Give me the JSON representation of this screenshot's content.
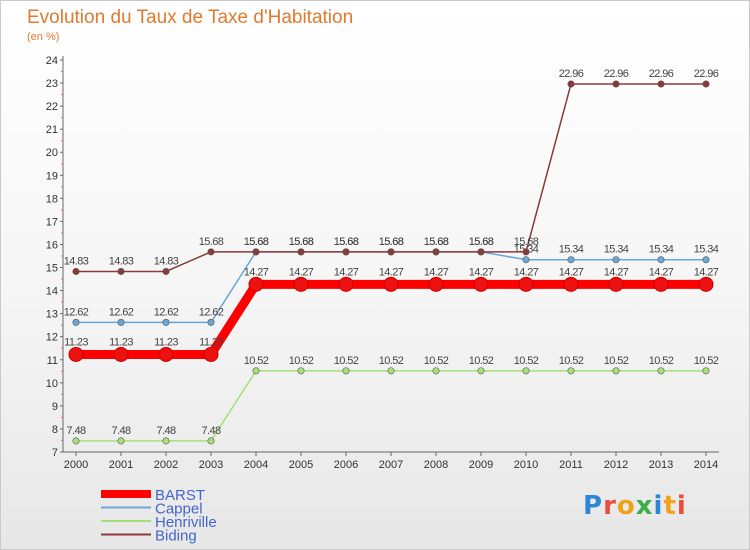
{
  "page": {
    "title": "Evolution du Taux de Taxe d'Habitation",
    "subtitle": "(en %)"
  },
  "logo": {
    "text": "Proxiti",
    "letter_colors": [
      "#2e86d6",
      "#e94e3d",
      "#f0a21b",
      "#3cae4b",
      "#2e86d6",
      "#f0a21b",
      "#e94e3d"
    ]
  },
  "chart_data": {
    "type": "line",
    "title": "Evolution du Taux de Taxe d'Habitation",
    "ylabel": "(en %)",
    "xlabel": "",
    "ylim": [
      7,
      24
    ],
    "yticks": [
      7,
      8,
      9,
      10,
      11,
      12,
      13,
      14,
      15,
      16,
      17,
      18,
      19,
      20,
      21,
      22,
      23,
      24
    ],
    "x": [
      "2000",
      "2001",
      "2002",
      "2003",
      "2004",
      "2005",
      "2006",
      "2007",
      "2008",
      "2009",
      "2010",
      "2011",
      "2012",
      "2013",
      "2014"
    ],
    "grid": false,
    "legend_position": "bottom-left",
    "series": [
      {
        "name": "BARST",
        "color": "#ff0000",
        "values": [
          11.23,
          11.23,
          11.23,
          11.23,
          14.27,
          14.27,
          14.27,
          14.27,
          14.27,
          14.27,
          14.27,
          14.27,
          14.27,
          14.27,
          14.27
        ],
        "labels": [
          "11.23",
          "11.23",
          "11.23",
          "11.23",
          "14.27",
          "14.27",
          "14.27",
          "14.27",
          "14.27",
          "14.27",
          "14.27",
          "14.27",
          "14.27",
          "14.27",
          "14.27"
        ]
      },
      {
        "name": "Cappel",
        "color": "#6aa6d6",
        "values": [
          12.62,
          12.62,
          12.62,
          12.62,
          15.68,
          15.68,
          15.68,
          15.68,
          15.68,
          15.68,
          15.34,
          15.34,
          15.34,
          15.34,
          15.34
        ],
        "labels": [
          "12.62",
          "12.62",
          "12.62",
          "12.62",
          "15.68",
          "15.68",
          "15.68",
          "15.68",
          "15.68",
          "15.68",
          "15.34",
          "15.34",
          "15.34",
          "15.34",
          "15.34"
        ]
      },
      {
        "name": "Henriville",
        "color": "#a7e07a",
        "values": [
          7.48,
          7.48,
          7.48,
          7.48,
          10.52,
          10.52,
          10.52,
          10.52,
          10.52,
          10.52,
          10.52,
          10.52,
          10.52,
          10.52,
          10.52
        ],
        "labels": [
          "7.48",
          "7.48",
          "7.48",
          "7.48",
          "10.52",
          "10.52",
          "10.52",
          "10.52",
          "10.52",
          "10.52",
          "10.52",
          "10.52",
          "10.52",
          "10.52",
          "10.52"
        ]
      },
      {
        "name": "Biding",
        "color": "#8a3a3a",
        "values": [
          14.83,
          14.83,
          14.83,
          15.68,
          15.68,
          15.68,
          15.68,
          15.68,
          15.68,
          15.68,
          15.68,
          22.96,
          22.96,
          22.96,
          22.96
        ],
        "labels": [
          "14.83",
          "14.83",
          "14.83",
          "15.68",
          "15.68",
          "15.68",
          "15.68",
          "15.68",
          "15.68",
          "15.68",
          "15.68",
          "22.96",
          "22.96",
          "22.96",
          "22.96"
        ]
      }
    ]
  }
}
